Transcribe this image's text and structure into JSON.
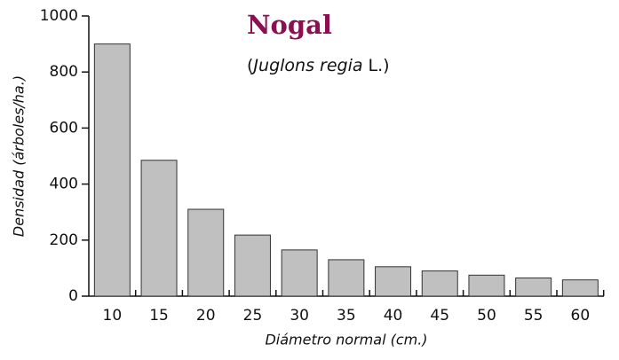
{
  "chart_data": {
    "type": "bar",
    "title": "Nogal",
    "subtitle": [
      "(",
      "Juglons regia",
      " L.)"
    ],
    "xlabel": "Diámetro normal (cm.)",
    "ylabel": "Densidad (árboles/ha.)",
    "categories": [
      "10",
      "15",
      "20",
      "25",
      "30",
      "35",
      "40",
      "45",
      "50",
      "55",
      "60"
    ],
    "values": [
      900,
      485,
      310,
      218,
      165,
      130,
      105,
      90,
      75,
      65,
      58
    ],
    "color": "#c0c0c0",
    "ylim": [
      0,
      1000
    ],
    "yticks": [
      0,
      200,
      400,
      600,
      800,
      1000
    ],
    "grid": false
  }
}
